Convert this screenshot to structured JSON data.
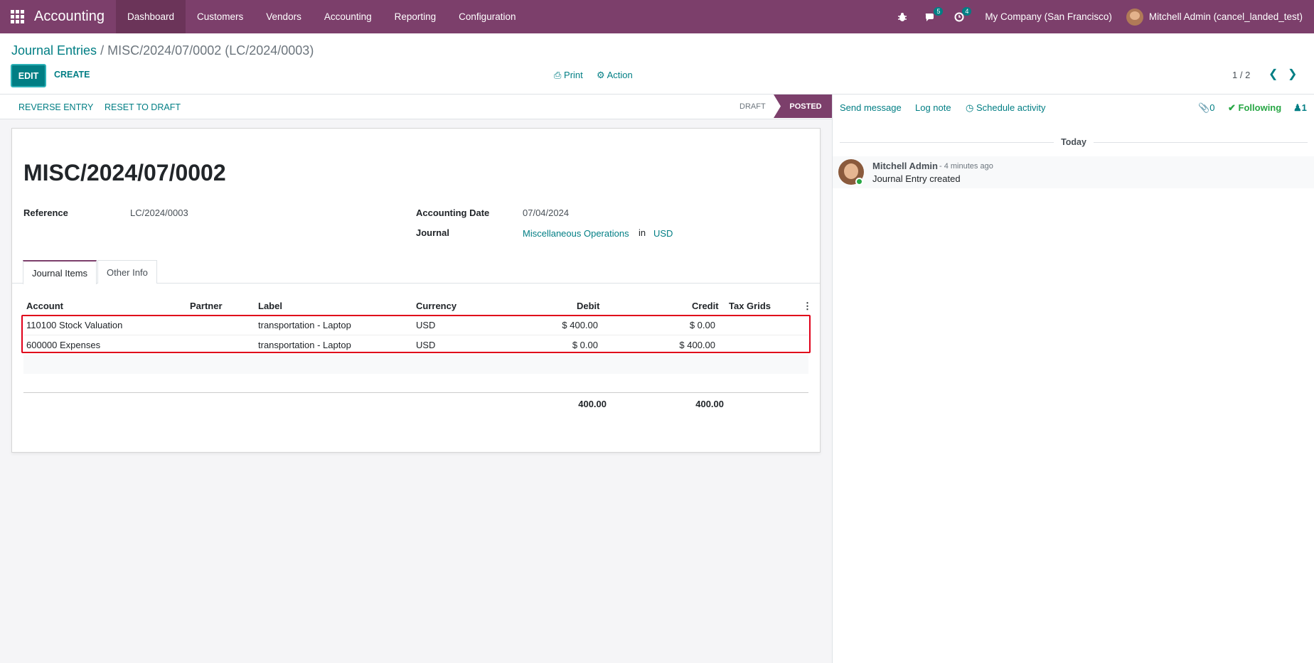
{
  "navbar": {
    "app_title": "Accounting",
    "menu": [
      "Dashboard",
      "Customers",
      "Vendors",
      "Accounting",
      "Reporting",
      "Configuration"
    ],
    "messages_count": "5",
    "activities_count": "4",
    "company": "My Company (San Francisco)",
    "user": "Mitchell Admin (cancel_landed_test)"
  },
  "control": {
    "breadcrumb_parent": "Journal Entries",
    "breadcrumb_separator": "/",
    "breadcrumb_current": "MISC/2024/07/0002 (LC/2024/0003)",
    "edit_label": "EDIT",
    "create_label": "CREATE",
    "print_label": "Print",
    "action_label": "Action",
    "pager": "1 / 2"
  },
  "statusbar": {
    "reverse_label": "REVERSE ENTRY",
    "reset_label": "RESET TO DRAFT",
    "stages": [
      "DRAFT",
      "POSTED"
    ],
    "current_stage": "POSTED"
  },
  "form": {
    "title": "MISC/2024/07/0002",
    "reference_label": "Reference",
    "reference_value": "LC/2024/0003",
    "date_label": "Accounting Date",
    "date_value": "07/04/2024",
    "journal_label": "Journal",
    "journal_value": "Miscellaneous Operations",
    "journal_in": "in",
    "currency_value": "USD",
    "tabs": [
      "Journal Items",
      "Other Info"
    ],
    "columns": [
      "Account",
      "Partner",
      "Label",
      "Currency",
      "Debit",
      "Credit",
      "Tax Grids"
    ],
    "rows": [
      {
        "account": "110100 Stock Valuation",
        "partner": "",
        "label": "transportation - Laptop",
        "currency": "USD",
        "debit": "$ 400.00",
        "credit": "$ 0.00"
      },
      {
        "account": "600000 Expenses",
        "partner": "",
        "label": "transportation - Laptop",
        "currency": "USD",
        "debit": "$ 0.00",
        "credit": "$ 400.00"
      }
    ],
    "total_debit": "400.00",
    "total_credit": "400.00"
  },
  "chatter": {
    "send_message": "Send message",
    "log_note": "Log note",
    "schedule_activity": "Schedule activity",
    "attachments": "0",
    "following": "Following",
    "followers": "1",
    "date_separator": "Today",
    "message": {
      "author": "Mitchell Admin",
      "time": "- 4 minutes ago",
      "body": "Journal Entry created"
    }
  },
  "colors": {
    "brand": "#7c3f6b",
    "accent": "#017e84",
    "highlight": "#e0001a",
    "success": "#28a745"
  }
}
